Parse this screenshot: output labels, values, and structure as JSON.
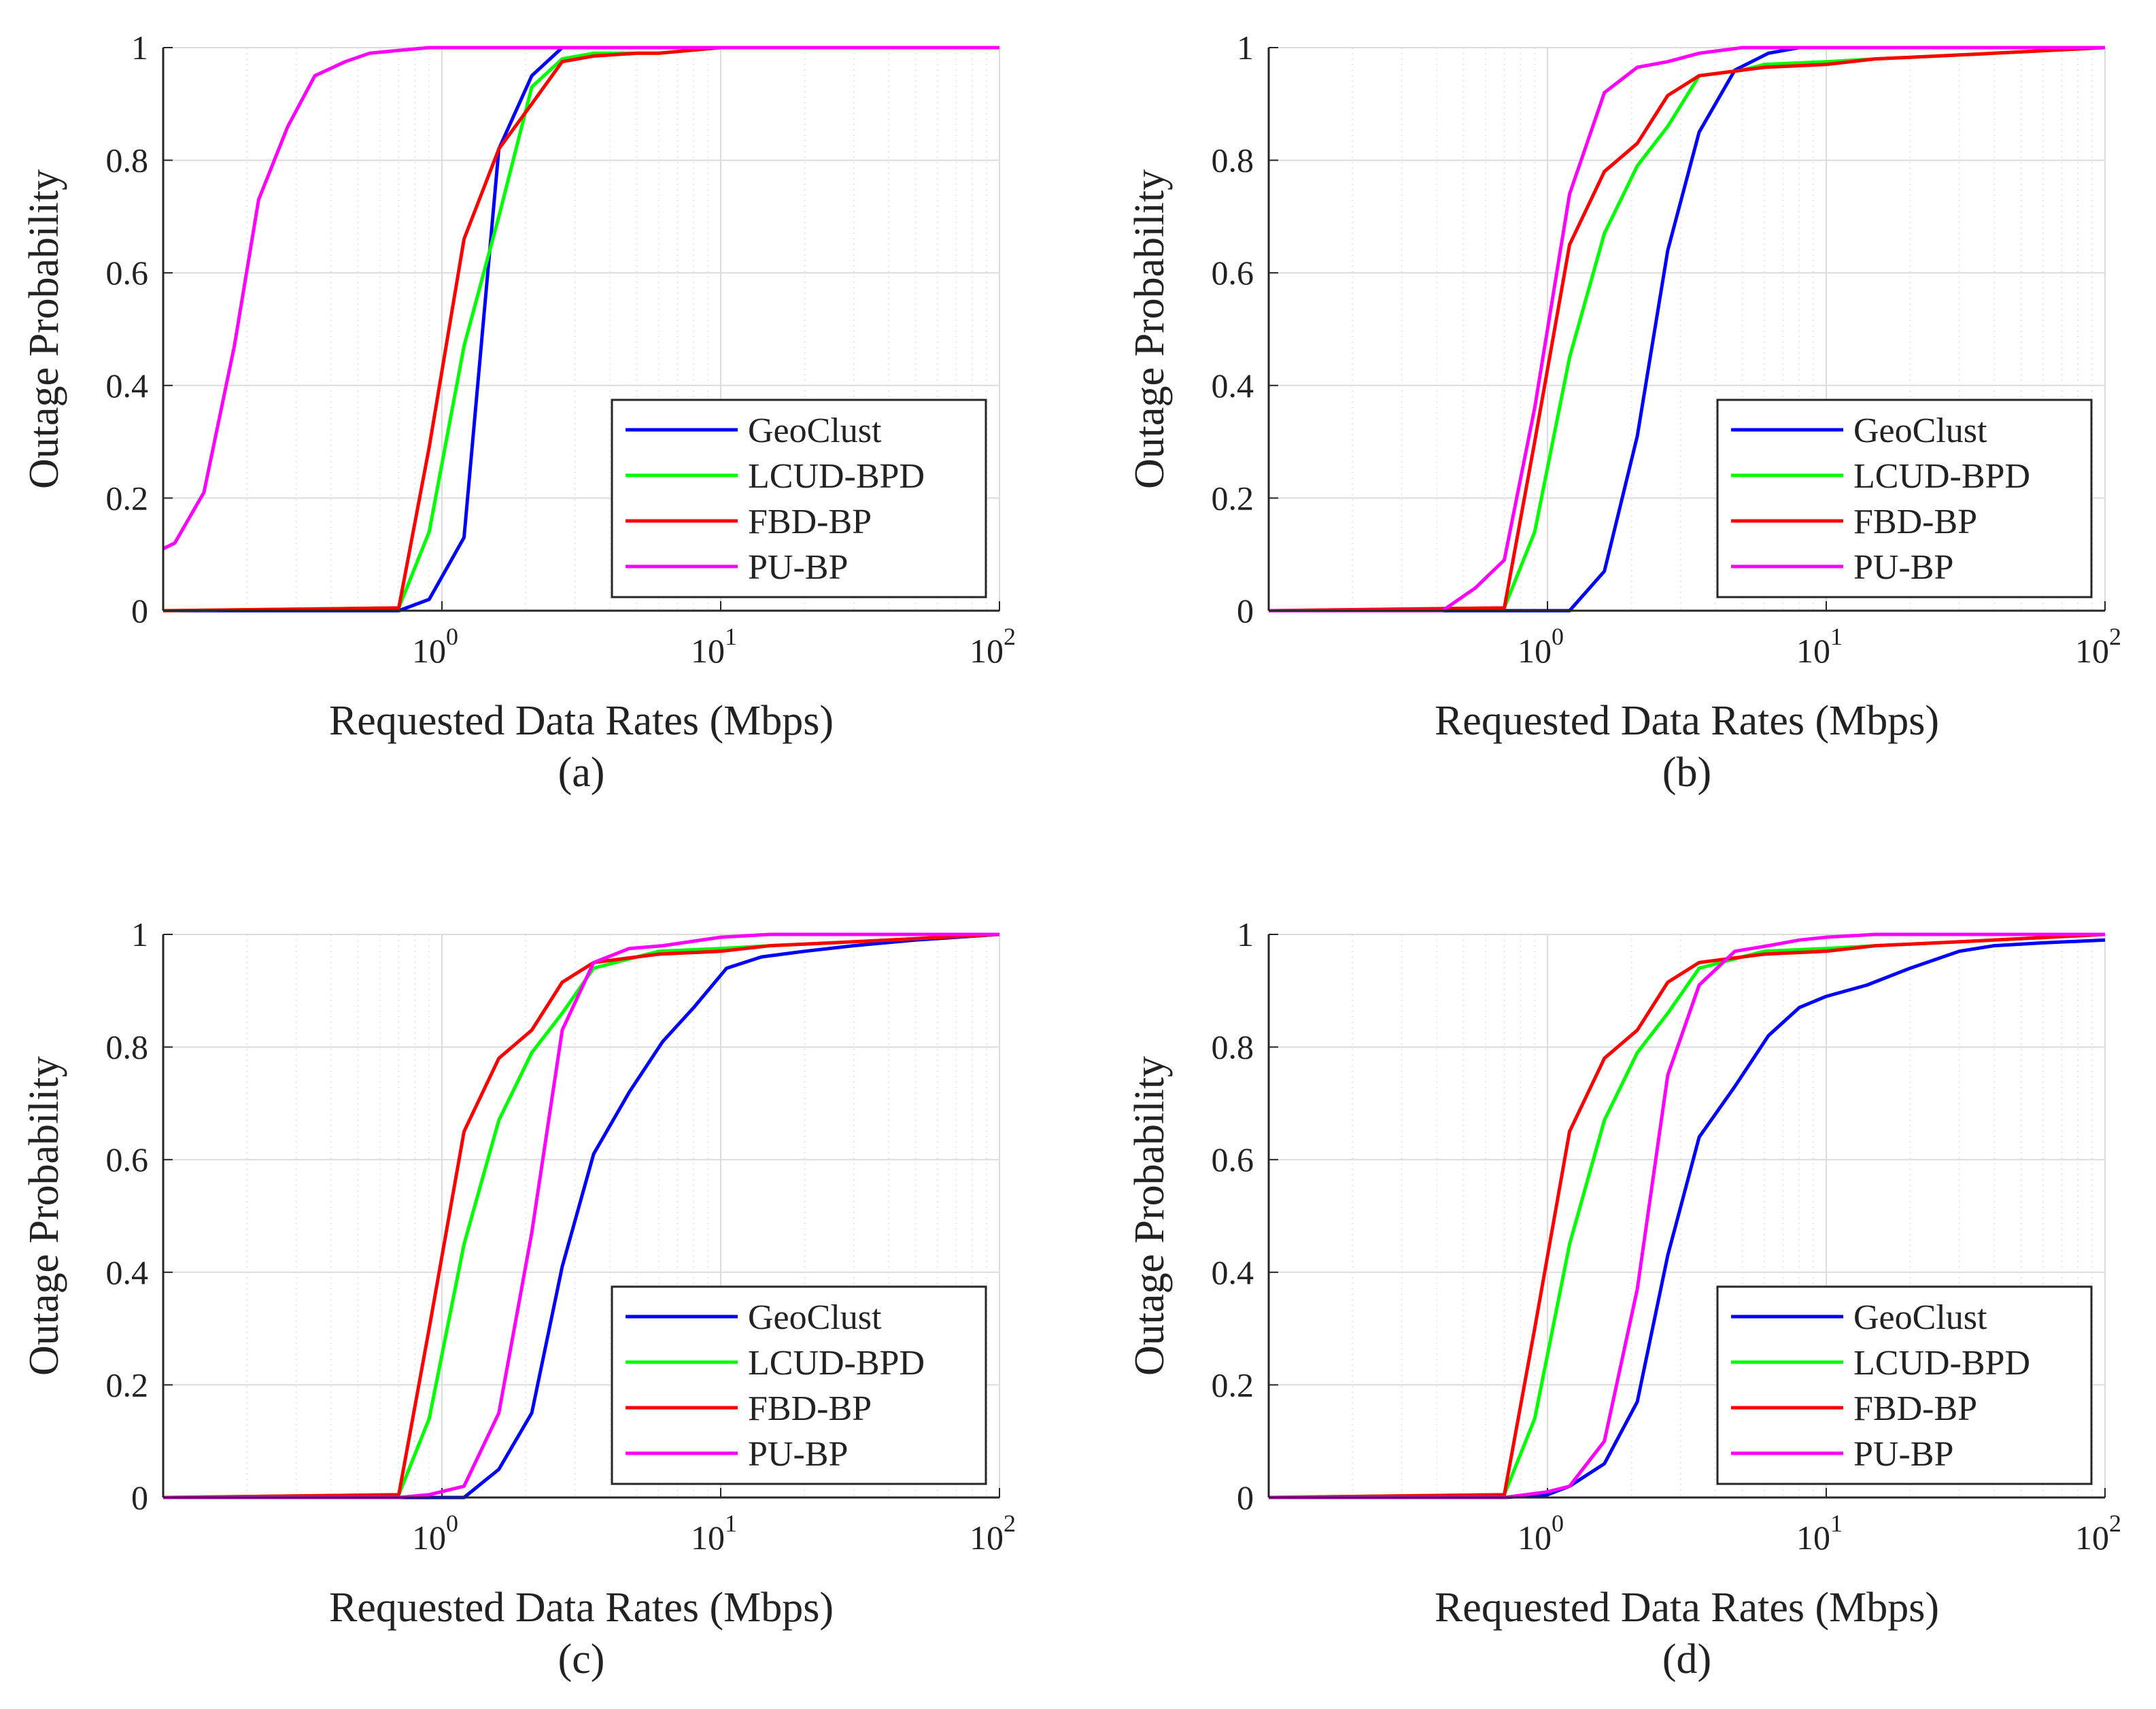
{
  "colors": {
    "GeoClust": "#0000ff",
    "LCUD-BPD": "#00ff00",
    "FBD-BP": "#ff0000",
    "PU-BP": "#ff00ff",
    "axis": "#262626",
    "grid_major": "#dcdcdc",
    "grid_minor": "#e6e6e6"
  },
  "chart_data": [
    {
      "type": "line",
      "panel_label": "(a)",
      "xlabel": "Requested Data Rates (Mbps)",
      "ylabel": "Outage Probability",
      "xscale": "log",
      "xlim": [
        0.1,
        100
      ],
      "ylim": [
        0,
        1
      ],
      "x_ticks": [
        "10",
        "10",
        "10"
      ],
      "x_tick_exponents": [
        "0",
        "1",
        "2"
      ],
      "y_ticks": [
        "0",
        "0.2",
        "0.4",
        "0.6",
        "0.8",
        "1"
      ],
      "grid": true,
      "legend": "bottom-right",
      "legend_entries": [
        "GeoClust",
        "LCUD-BPD",
        "FBD-BP",
        "PU-BP"
      ],
      "series": [
        {
          "name": "GeoClust",
          "x": [
            0.1,
            0.7,
            0.9,
            1.2,
            1.6,
            2.1,
            2.7,
            3.5,
            5,
            10,
            100
          ],
          "y": [
            0,
            0,
            0.02,
            0.13,
            0.82,
            0.95,
            1.0,
            1.0,
            1.0,
            1.0,
            1.0
          ]
        },
        {
          "name": "LCUD-BPD",
          "x": [
            0.1,
            0.7,
            0.9,
            1.2,
            1.6,
            2.1,
            2.7,
            3.5,
            5,
            6,
            10,
            100
          ],
          "y": [
            0,
            0.005,
            0.14,
            0.47,
            0.7,
            0.93,
            0.98,
            0.99,
            0.99,
            0.99,
            1.0,
            1.0
          ]
        },
        {
          "name": "FBD-BP",
          "x": [
            0.1,
            0.7,
            0.9,
            1.2,
            1.6,
            2.1,
            2.7,
            3.5,
            5,
            6,
            10,
            100
          ],
          "y": [
            0,
            0.005,
            0.29,
            0.66,
            0.82,
            0.9,
            0.975,
            0.985,
            0.99,
            0.99,
            1.0,
            1.0
          ]
        },
        {
          "name": "PU-BP",
          "x": [
            0.1,
            0.11,
            0.14,
            0.18,
            0.22,
            0.28,
            0.35,
            0.45,
            0.55,
            0.7,
            0.9,
            1.2,
            2,
            100
          ],
          "y": [
            0.11,
            0.12,
            0.21,
            0.47,
            0.73,
            0.86,
            0.95,
            0.975,
            0.99,
            0.995,
            1.0,
            1.0,
            1.0,
            1.0
          ]
        }
      ]
    },
    {
      "type": "line",
      "panel_label": "(b)",
      "xlabel": "Requested Data Rates (Mbps)",
      "ylabel": "Outage Probability",
      "xscale": "log",
      "xlim": [
        0.1,
        100
      ],
      "ylim": [
        0,
        1
      ],
      "x_ticks": [
        "10",
        "10",
        "10"
      ],
      "x_tick_exponents": [
        "0",
        "1",
        "2"
      ],
      "y_ticks": [
        "0",
        "0.2",
        "0.4",
        "0.6",
        "0.8",
        "1"
      ],
      "grid": true,
      "legend": "bottom-right",
      "legend_entries": [
        "GeoClust",
        "LCUD-BPD",
        "FBD-BP",
        "PU-BP"
      ],
      "series": [
        {
          "name": "GeoClust",
          "x": [
            0.1,
            1.2,
            1.6,
            2.1,
            2.7,
            3.5,
            4.7,
            6.2,
            8,
            100
          ],
          "y": [
            0,
            0,
            0.07,
            0.31,
            0.64,
            0.85,
            0.96,
            0.99,
            1.0,
            1.0
          ]
        },
        {
          "name": "LCUD-BPD",
          "x": [
            0.1,
            0.7,
            0.9,
            1.2,
            1.6,
            2.1,
            2.7,
            3.5,
            5,
            6,
            10,
            15,
            25,
            40,
            100
          ],
          "y": [
            0,
            0.005,
            0.14,
            0.45,
            0.67,
            0.79,
            0.86,
            0.95,
            0.96,
            0.97,
            0.975,
            0.98,
            0.985,
            0.99,
            1.0
          ]
        },
        {
          "name": "FBD-BP",
          "x": [
            0.1,
            0.7,
            0.9,
            1.2,
            1.6,
            2.1,
            2.7,
            3.5,
            5,
            6,
            10,
            15,
            25,
            40,
            100
          ],
          "y": [
            0,
            0.005,
            0.3,
            0.65,
            0.78,
            0.83,
            0.915,
            0.95,
            0.96,
            0.965,
            0.97,
            0.98,
            0.985,
            0.99,
            1.0
          ]
        },
        {
          "name": "PU-BP",
          "x": [
            0.1,
            0.42,
            0.55,
            0.7,
            0.9,
            1.2,
            1.6,
            2.1,
            2.7,
            3.5,
            5,
            100
          ],
          "y": [
            0,
            0,
            0.04,
            0.09,
            0.36,
            0.74,
            0.92,
            0.965,
            0.975,
            0.99,
            1.0,
            1.0
          ]
        }
      ]
    },
    {
      "type": "line",
      "panel_label": "(c)",
      "xlabel": "Requested Data Rates (Mbps)",
      "ylabel": "Outage Probability",
      "xscale": "log",
      "xlim": [
        0.1,
        100
      ],
      "ylim": [
        0,
        1
      ],
      "x_ticks": [
        "10",
        "10",
        "10"
      ],
      "x_tick_exponents": [
        "0",
        "1",
        "2"
      ],
      "y_ticks": [
        "0",
        "0.2",
        "0.4",
        "0.6",
        "0.8",
        "1"
      ],
      "grid": true,
      "legend": "bottom-right",
      "legend_entries": [
        "GeoClust",
        "LCUD-BPD",
        "FBD-BP",
        "PU-BP"
      ],
      "series": [
        {
          "name": "GeoClust",
          "x": [
            0.1,
            1.2,
            1.6,
            2.1,
            2.7,
            3.5,
            4.7,
            6.2,
            8,
            10.5,
            14,
            20,
            30,
            50,
            100
          ],
          "y": [
            0,
            0,
            0.05,
            0.15,
            0.41,
            0.61,
            0.72,
            0.81,
            0.87,
            0.94,
            0.96,
            0.97,
            0.98,
            0.99,
            1.0
          ]
        },
        {
          "name": "LCUD-BPD",
          "x": [
            0.1,
            0.7,
            0.9,
            1.2,
            1.6,
            2.1,
            2.7,
            3.5,
            5,
            6,
            10,
            15,
            25,
            40,
            100
          ],
          "y": [
            0,
            0.005,
            0.14,
            0.45,
            0.67,
            0.79,
            0.86,
            0.94,
            0.96,
            0.97,
            0.975,
            0.98,
            0.985,
            0.99,
            1.0
          ]
        },
        {
          "name": "FBD-BP",
          "x": [
            0.1,
            0.7,
            0.9,
            1.2,
            1.6,
            2.1,
            2.7,
            3.5,
            5,
            6,
            10,
            15,
            25,
            40,
            100
          ],
          "y": [
            0,
            0.005,
            0.3,
            0.65,
            0.78,
            0.83,
            0.915,
            0.95,
            0.96,
            0.965,
            0.97,
            0.98,
            0.985,
            0.99,
            1.0
          ]
        },
        {
          "name": "PU-BP",
          "x": [
            0.1,
            0.7,
            0.9,
            1.2,
            1.6,
            2.1,
            2.7,
            3.5,
            4.7,
            6.2,
            10,
            15,
            100
          ],
          "y": [
            0,
            0,
            0.005,
            0.02,
            0.15,
            0.47,
            0.83,
            0.95,
            0.975,
            0.98,
            0.995,
            1.0,
            1.0
          ]
        }
      ]
    },
    {
      "type": "line",
      "panel_label": "(d)",
      "xlabel": "Requested Data Rates (Mbps)",
      "ylabel": "Outage Probability",
      "xscale": "log",
      "xlim": [
        0.1,
        100
      ],
      "ylim": [
        0,
        1
      ],
      "x_ticks": [
        "10",
        "10",
        "10"
      ],
      "x_tick_exponents": [
        "0",
        "1",
        "2"
      ],
      "y_ticks": [
        "0",
        "0.2",
        "0.4",
        "0.6",
        "0.8",
        "1"
      ],
      "grid": true,
      "legend": "bottom-right",
      "legend_entries": [
        "GeoClust",
        "LCUD-BPD",
        "FBD-BP",
        "PU-BP"
      ],
      "series": [
        {
          "name": "GeoClust",
          "x": [
            0.1,
            0.7,
            1.0,
            1.2,
            1.6,
            2.1,
            2.7,
            3.5,
            4.7,
            6.2,
            8,
            10,
            14,
            20,
            30,
            40,
            60,
            100
          ],
          "y": [
            0,
            0,
            0.005,
            0.02,
            0.06,
            0.17,
            0.43,
            0.64,
            0.73,
            0.82,
            0.87,
            0.89,
            0.91,
            0.94,
            0.97,
            0.98,
            0.985,
            0.99
          ]
        },
        {
          "name": "LCUD-BPD",
          "x": [
            0.1,
            0.7,
            0.9,
            1.2,
            1.6,
            2.1,
            2.7,
            3.5,
            5,
            6,
            10,
            15,
            25,
            40,
            100
          ],
          "y": [
            0,
            0.005,
            0.14,
            0.45,
            0.67,
            0.79,
            0.86,
            0.94,
            0.96,
            0.97,
            0.975,
            0.98,
            0.985,
            0.99,
            1.0
          ]
        },
        {
          "name": "FBD-BP",
          "x": [
            0.1,
            0.7,
            0.9,
            1.2,
            1.6,
            2.1,
            2.7,
            3.5,
            5,
            6,
            10,
            15,
            25,
            40,
            100
          ],
          "y": [
            0,
            0.005,
            0.3,
            0.65,
            0.78,
            0.83,
            0.915,
            0.95,
            0.96,
            0.965,
            0.97,
            0.98,
            0.985,
            0.99,
            1.0
          ]
        },
        {
          "name": "PU-BP",
          "x": [
            0.1,
            0.7,
            1.0,
            1.2,
            1.6,
            2.1,
            2.7,
            3.5,
            4.7,
            6.2,
            8,
            10,
            15,
            100
          ],
          "y": [
            0,
            0,
            0.01,
            0.02,
            0.1,
            0.37,
            0.75,
            0.91,
            0.97,
            0.98,
            0.99,
            0.995,
            1.0,
            1.0
          ]
        }
      ]
    }
  ]
}
